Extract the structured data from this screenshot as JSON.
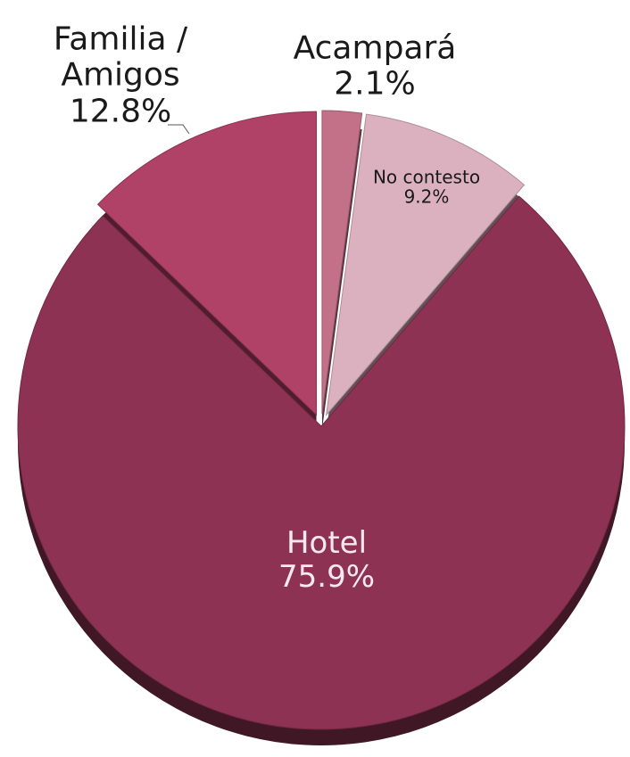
{
  "chart_data": {
    "type": "pie",
    "categories": [
      "Acampará",
      "No contesto",
      "Hotel",
      "Familia / Amigos"
    ],
    "values": [
      2.1,
      9.2,
      75.9,
      12.8
    ],
    "value_labels": [
      "2.1%",
      "9.2%",
      "75.9%",
      "12.8%"
    ],
    "colors": [
      "#c27188",
      "#dbb1bf",
      "#8e3253",
      "#b04167"
    ]
  }
}
